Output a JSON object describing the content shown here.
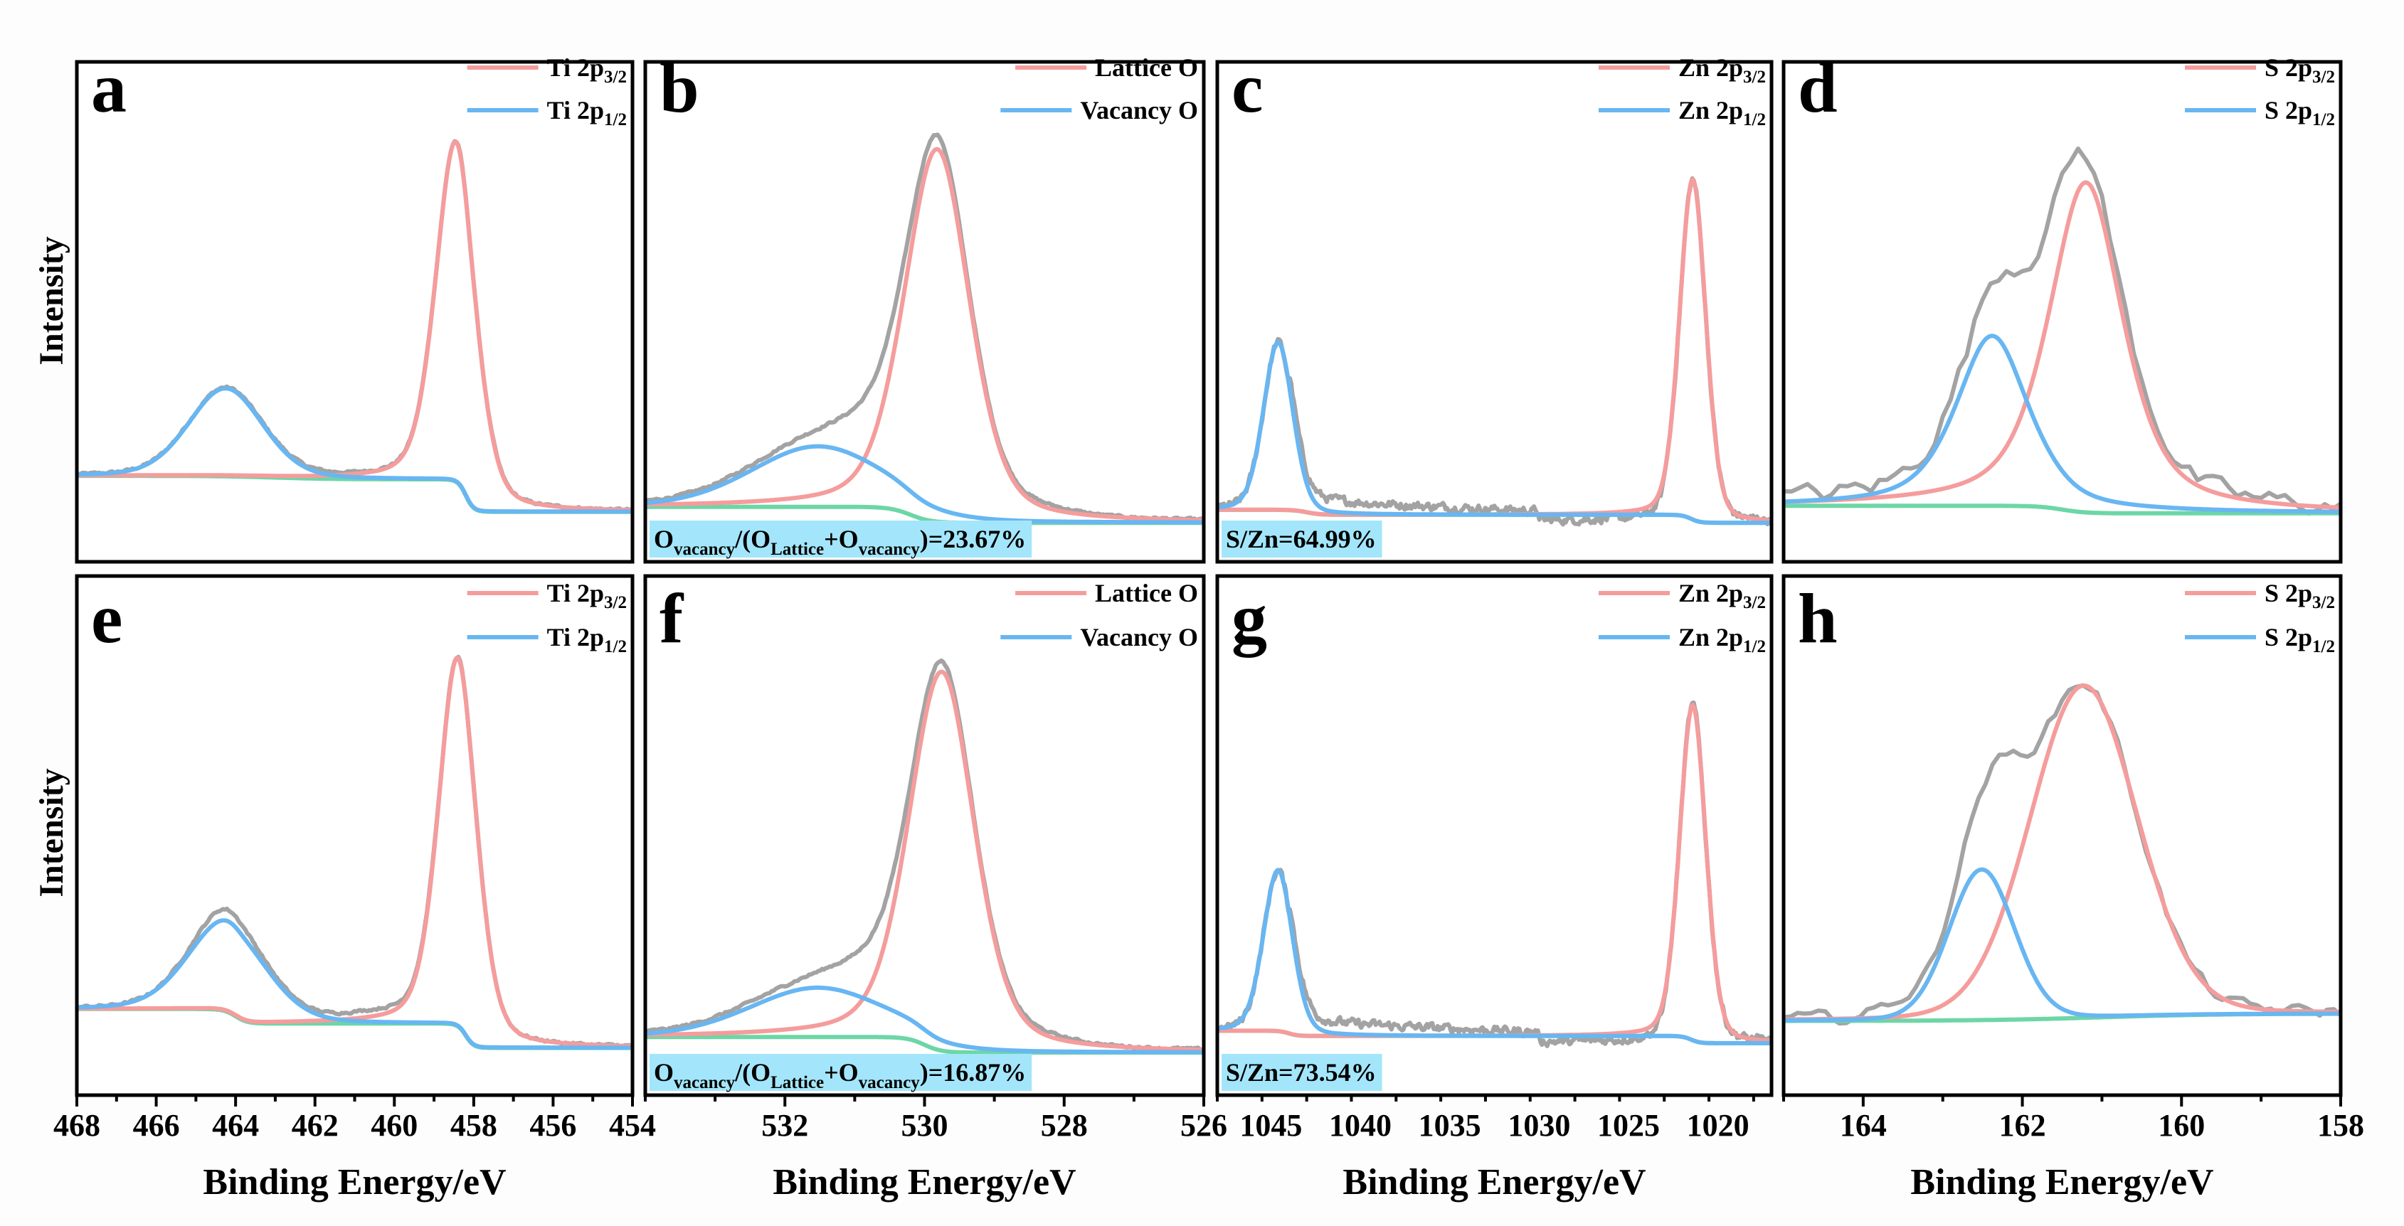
{
  "figure": {
    "x_axis_title": "Binding Energy/eV",
    "y_axis_title": "Intensity"
  },
  "colors": {
    "component_1": "#f59c9c",
    "component_2": "#68b6f2",
    "background": "#6dd6a6",
    "raw": "#a3a3a3",
    "annotation_box": "#a3e6fb",
    "frame": "#000000"
  },
  "chart_data": [
    {
      "panel": "a",
      "type": "line",
      "xlim": [
        468,
        454
      ],
      "ylim": [
        0,
        1
      ],
      "y_ticks_shown": false,
      "x_ticks": [
        468,
        466,
        464,
        462,
        460,
        458,
        456,
        454
      ],
      "x_minor_step": 1,
      "x_tick_labels": [
        "468",
        "466",
        "464",
        "462",
        "460",
        "458",
        "456",
        "454"
      ],
      "legend": [
        {
          "text": "Ti 2p",
          "sub": "3/2"
        },
        {
          "text": "Ti 2p",
          "sub": "1/2"
        }
      ],
      "components": [
        {
          "center": 458.45,
          "height": 0.68,
          "fwhm": 1.19,
          "eta": 0.3
        },
        {
          "center": 464.25,
          "height": 0.176,
          "fwhm": 2.2,
          "eta": 0.2
        }
      ],
      "background": {
        "start": 0.172,
        "steps": [
          {
            "center": 463,
            "drop": 0.007,
            "width": 3
          },
          {
            "center": 458.2,
            "drop": 0.065,
            "width": 0.4
          }
        ]
      },
      "annotation": null
    },
    {
      "panel": "b",
      "type": "line",
      "xlim": [
        534,
        526
      ],
      "ylim": [
        0,
        1
      ],
      "y_ticks_shown": false,
      "x_ticks": [
        532,
        530,
        528,
        526
      ],
      "x_minor_step": 1,
      "x_tick_labels": [
        "532",
        "530",
        "528",
        "526"
      ],
      "legend": [
        {
          "text": "Lattice O",
          "sub": ""
        },
        {
          "text": "Vacancy O",
          "sub": ""
        }
      ],
      "components": [
        {
          "center": 529.82,
          "height": 0.745,
          "fwhm": 1.1,
          "eta": 0.35
        },
        {
          "center": 531.53,
          "height": 0.121,
          "fwhm": 2.25,
          "eta": 0.2
        }
      ],
      "background": {
        "start": 0.11,
        "steps": [
          {
            "center": 530.2,
            "drop": 0.032,
            "width": 0.6
          }
        ]
      },
      "annotation": [
        {
          "t": "O"
        },
        {
          "s": "vacancy"
        },
        {
          "t": "/(O"
        },
        {
          "s": "Lattice"
        },
        {
          "t": "+O"
        },
        {
          "s": "vacancy"
        },
        {
          "t": ")=23.67%"
        }
      ]
    },
    {
      "panel": "c",
      "type": "line",
      "xlim": [
        1048,
        1017
      ],
      "ylim": [
        0,
        1
      ],
      "y_ticks_shown": false,
      "x_ticks": [
        1045,
        1040,
        1035,
        1030,
        1025,
        1020
      ],
      "x_minor_step": 2.5,
      "x_tick_labels": [
        "1045",
        "1040",
        "1035",
        "1030",
        "1025",
        "1020"
      ],
      "legend": [
        {
          "text": "Zn 2p",
          "sub": "3/2"
        },
        {
          "text": "Zn 2p",
          "sub": "1/2"
        }
      ],
      "components": [
        {
          "center": 1021.4,
          "height": 0.68,
          "fwhm": 1.73,
          "eta": 0.2
        },
        {
          "center": 1044.6,
          "height": 0.335,
          "fwhm": 1.93,
          "eta": 0.2
        }
      ],
      "background": {
        "start": 0.104,
        "steps": [
          {
            "center": 1043,
            "drop": 0.01,
            "width": 1.5
          },
          {
            "center": 1021.5,
            "drop": 0.016,
            "width": 1
          }
        ]
      },
      "annotation": [
        {
          "t": "S/Zn=64.99%"
        }
      ]
    },
    {
      "panel": "d",
      "type": "line",
      "xlim": [
        165,
        158
      ],
      "ylim": [
        0,
        1
      ],
      "y_ticks_shown": false,
      "x_ticks": [
        164,
        162,
        160,
        158
      ],
      "x_minor_step": 1,
      "x_tick_labels": [
        "164",
        "162",
        "160",
        "158"
      ],
      "legend": [
        {
          "text": "S 2p",
          "sub": "3/2"
        },
        {
          "text": "S 2p",
          "sub": "1/2"
        }
      ],
      "components": [
        {
          "center": 161.2,
          "height": 0.66,
          "fwhm": 1.1,
          "eta": 0.6
        },
        {
          "center": 162.38,
          "height": 0.34,
          "fwhm": 1.08,
          "eta": 0.6
        }
      ],
      "background": {
        "start": 0.112,
        "steps": [
          {
            "center": 161.5,
            "drop": 0.015,
            "width": 0.6
          }
        ]
      },
      "annotation": null
    },
    {
      "panel": "e",
      "type": "line",
      "xlim": [
        468,
        454
      ],
      "ylim": [
        0,
        1
      ],
      "y_ticks_shown": false,
      "x_ticks": [
        468,
        466,
        464,
        462,
        460,
        458,
        456,
        454
      ],
      "x_minor_step": 1,
      "x_tick_labels": [
        "468",
        "466",
        "464",
        "462",
        "460",
        "458",
        "456",
        "454"
      ],
      "legend": [
        {
          "text": "Ti 2p",
          "sub": "3/2"
        },
        {
          "text": "Ti 2p",
          "sub": "1/2"
        }
      ],
      "components": [
        {
          "center": 458.4,
          "height": 0.71,
          "fwhm": 1.14,
          "eta": 0.3
        },
        {
          "center": 464.2,
          "height": 0.175,
          "fwhm": 2.33,
          "eta": 0.2
        }
      ],
      "background": {
        "start": 0.166,
        "steps": [
          {
            "center": 464.0,
            "drop": 0.028,
            "width": 0.6
          },
          {
            "center": 458.2,
            "drop": 0.047,
            "width": 0.4
          }
        ]
      },
      "annotation": null
    },
    {
      "panel": "f",
      "type": "line",
      "xlim": [
        534,
        526
      ],
      "ylim": [
        0,
        1
      ],
      "y_ticks_shown": false,
      "x_ticks": [
        532,
        530,
        528,
        526
      ],
      "x_minor_step": 1,
      "x_tick_labels": [
        "532",
        "530",
        "528",
        "526"
      ],
      "legend": [
        {
          "text": "Lattice O",
          "sub": ""
        },
        {
          "text": "Vacancy O",
          "sub": ""
        }
      ],
      "components": [
        {
          "center": 529.75,
          "height": 0.73,
          "fwhm": 1.1,
          "eta": 0.35
        },
        {
          "center": 531.53,
          "height": 0.095,
          "fwhm": 2.3,
          "eta": 0.2
        }
      ],
      "background": {
        "start": 0.112,
        "steps": [
          {
            "center": 530.0,
            "drop": 0.03,
            "width": 0.5
          }
        ]
      },
      "annotation": [
        {
          "t": "O"
        },
        {
          "s": "vacancy"
        },
        {
          "t": "/(O"
        },
        {
          "s": "Lattice"
        },
        {
          "t": "+O"
        },
        {
          "s": "vacancy"
        },
        {
          "t": ")=16.87%"
        }
      ]
    },
    {
      "panel": "g",
      "type": "line",
      "xlim": [
        1048,
        1017
      ],
      "ylim": [
        0,
        1
      ],
      "y_ticks_shown": false,
      "x_ticks": [
        1045,
        1040,
        1035,
        1030,
        1025,
        1020
      ],
      "x_minor_step": 2.5,
      "x_tick_labels": [
        "1045",
        "1040",
        "1035",
        "1030",
        "1025",
        "1020"
      ],
      "legend": [
        {
          "text": "Zn 2p",
          "sub": "3/2"
        },
        {
          "text": "Zn 2p",
          "sub": "1/2"
        }
      ],
      "components": [
        {
          "center": 1021.4,
          "height": 0.645,
          "fwhm": 1.73,
          "eta": 0.2
        },
        {
          "center": 1044.6,
          "height": 0.31,
          "fwhm": 1.93,
          "eta": 0.2
        }
      ],
      "background": {
        "start": 0.124,
        "steps": [
          {
            "center": 1044,
            "drop": 0.01,
            "width": 1
          },
          {
            "center": 1021.5,
            "drop": 0.014,
            "width": 1
          }
        ]
      },
      "annotation": [
        {
          "t": "S/Zn=73.54%"
        }
      ]
    },
    {
      "panel": "h",
      "type": "line",
      "xlim": [
        165,
        158
      ],
      "ylim": [
        0,
        1
      ],
      "y_ticks_shown": false,
      "x_ticks": [
        164,
        162,
        160,
        158
      ],
      "x_minor_step": 1,
      "x_tick_labels": [
        "164",
        "162",
        "160",
        "158"
      ],
      "legend": [
        {
          "text": "S 2p",
          "sub": "3/2"
        },
        {
          "text": "S 2p",
          "sub": "1/2"
        }
      ],
      "components": [
        {
          "center": 161.23,
          "height": 0.64,
          "fwhm": 1.59,
          "eta": 0.1
        },
        {
          "center": 162.51,
          "height": 0.29,
          "fwhm": 0.97,
          "eta": 0.1
        }
      ],
      "background": {
        "start": 0.143,
        "steps": [
          {
            "center": 161,
            "drop": -0.014,
            "width": 3
          }
        ]
      },
      "annotation": null
    }
  ]
}
